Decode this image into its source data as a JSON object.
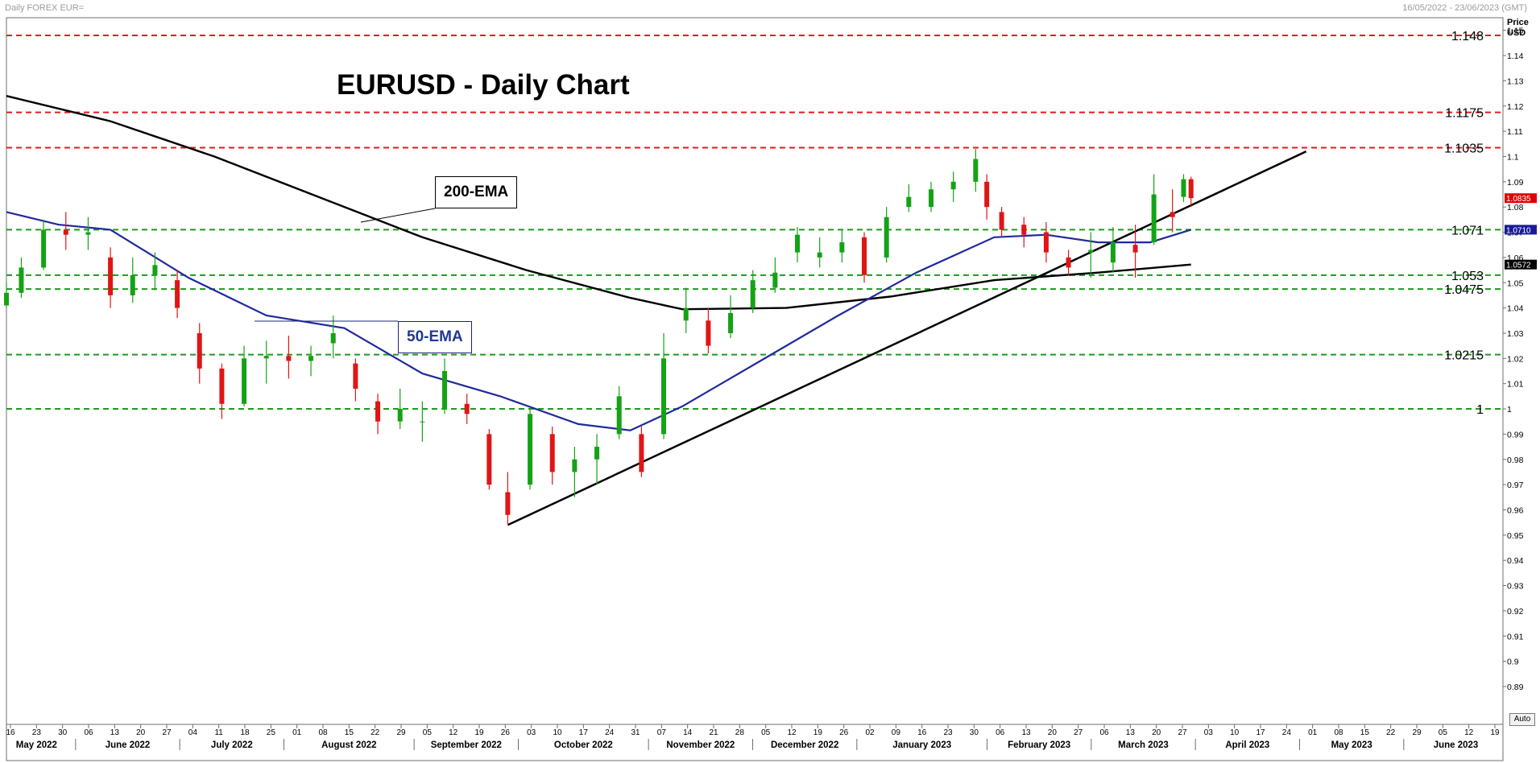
{
  "header": {
    "left": "Daily FOREX EUR=",
    "right": "16/05/2022 - 23/06/2023 (GMT)"
  },
  "price_axis_label": [
    "Price",
    "USD"
  ],
  "auto_label": "Auto",
  "chart_data": {
    "type": "candlestick",
    "title": "EURUSD - Daily Chart",
    "ylim": [
      0.875,
      1.155
    ],
    "y_ticks": [
      "0.89",
      "0.9",
      "0.91",
      "0.92",
      "0.93",
      "0.94",
      "0.95",
      "0.96",
      "0.97",
      "0.98",
      "0.99",
      "1",
      "1.01",
      "1.02",
      "1.03",
      "1.04",
      "1.05",
      "1.06",
      "1.07",
      "1.08",
      "1.09",
      "1.1",
      "1.11",
      "1.12",
      "1.13",
      "1.14",
      "1.15"
    ],
    "x_start": "2022-05-16",
    "x_end": "2023-06-23",
    "x_day_ticks": [
      "16",
      "23",
      "30",
      "06",
      "13",
      "20",
      "27",
      "04",
      "11",
      "18",
      "25",
      "01",
      "08",
      "15",
      "22",
      "29",
      "05",
      "12",
      "19",
      "26",
      "03",
      "10",
      "17",
      "24",
      "31",
      "07",
      "14",
      "21",
      "28",
      "05",
      "12",
      "19",
      "26",
      "02",
      "09",
      "16",
      "23",
      "30",
      "06",
      "13",
      "20",
      "27",
      "06",
      "13",
      "20",
      "27",
      "03",
      "10",
      "17",
      "24",
      "01",
      "08",
      "15",
      "22",
      "29",
      "05",
      "12",
      "19"
    ],
    "x_month_labels": [
      "May 2022",
      "June 2022",
      "July 2022",
      "August 2022",
      "September 2022",
      "October 2022",
      "November 2022",
      "December 2022",
      "January 2023",
      "February 2023",
      "March 2023",
      "April 2023",
      "May 2023",
      "June 2023"
    ],
    "resistance_levels": [
      {
        "value": 1.148,
        "label": "1.148"
      },
      {
        "value": 1.1175,
        "label": "1.1175"
      },
      {
        "value": 1.1035,
        "label": "1.1035"
      }
    ],
    "support_levels": [
      {
        "value": 1.071,
        "label": "1.071"
      },
      {
        "value": 1.053,
        "label": "1.053"
      },
      {
        "value": 1.0475,
        "label": "1.0475"
      },
      {
        "value": 1.0215,
        "label": "1.0215"
      },
      {
        "value": 1,
        "label": "1"
      }
    ],
    "price_tags": [
      {
        "value": 1.0835,
        "label": "1.0835",
        "color": "#e00000"
      },
      {
        "value": 1.071,
        "label": "1.0710",
        "color": "#1a1a9c"
      },
      {
        "value": 1.0572,
        "label": "1.0572",
        "color": "#000000"
      }
    ],
    "ema_labels": {
      "ema200": "200-EMA",
      "ema50": "50-EMA"
    },
    "ema200": [
      {
        "date": "2022-05-16",
        "value": 1.124
      },
      {
        "date": "2022-06-13",
        "value": 1.114
      },
      {
        "date": "2022-07-11",
        "value": 1.1
      },
      {
        "date": "2022-08-08",
        "value": 1.084
      },
      {
        "date": "2022-09-05",
        "value": 1.068
      },
      {
        "date": "2022-10-03",
        "value": 1.055
      },
      {
        "date": "2022-10-31",
        "value": 1.044
      },
      {
        "date": "2022-11-14",
        "value": 1.0395
      },
      {
        "date": "2022-12-12",
        "value": 1.04
      },
      {
        "date": "2023-01-09",
        "value": 1.0445
      },
      {
        "date": "2023-02-06",
        "value": 1.051
      },
      {
        "date": "2023-03-06",
        "value": 1.054
      },
      {
        "date": "2023-03-31",
        "value": 1.0572
      }
    ],
    "ema50": [
      {
        "date": "2022-05-16",
        "value": 1.078
      },
      {
        "date": "2022-05-30",
        "value": 1.073
      },
      {
        "date": "2022-06-13",
        "value": 1.071
      },
      {
        "date": "2022-07-04",
        "value": 1.052
      },
      {
        "date": "2022-07-25",
        "value": 1.037
      },
      {
        "date": "2022-08-15",
        "value": 1.032
      },
      {
        "date": "2022-09-05",
        "value": 1.014
      },
      {
        "date": "2022-09-26",
        "value": 1.005
      },
      {
        "date": "2022-10-17",
        "value": 0.994
      },
      {
        "date": "2022-10-31",
        "value": 0.9915
      },
      {
        "date": "2022-11-14",
        "value": 1.001
      },
      {
        "date": "2022-12-05",
        "value": 1.019
      },
      {
        "date": "2022-12-26",
        "value": 1.037
      },
      {
        "date": "2023-01-16",
        "value": 1.054
      },
      {
        "date": "2023-02-06",
        "value": 1.068
      },
      {
        "date": "2023-02-20",
        "value": 1.069
      },
      {
        "date": "2023-03-06",
        "value": 1.066
      },
      {
        "date": "2023-03-20",
        "value": 1.066
      },
      {
        "date": "2023-03-31",
        "value": 1.071
      }
    ],
    "trendline": [
      {
        "date": "2022-09-28",
        "value": 0.954
      },
      {
        "date": "2023-05-01",
        "value": 1.102
      }
    ],
    "candles": [
      {
        "date": "2022-05-16",
        "open": 1.041,
        "high": 1.05,
        "low": 1.04,
        "close": 1.046
      },
      {
        "date": "2022-05-20",
        "open": 1.046,
        "high": 1.06,
        "low": 1.044,
        "close": 1.056
      },
      {
        "date": "2022-05-26",
        "open": 1.056,
        "high": 1.075,
        "low": 1.055,
        "close": 1.071
      },
      {
        "date": "2022-06-01",
        "open": 1.071,
        "high": 1.078,
        "low": 1.063,
        "close": 1.069
      },
      {
        "date": "2022-06-07",
        "open": 1.069,
        "high": 1.076,
        "low": 1.063,
        "close": 1.07
      },
      {
        "date": "2022-06-13",
        "open": 1.06,
        "high": 1.064,
        "low": 1.04,
        "close": 1.045
      },
      {
        "date": "2022-06-19",
        "open": 1.045,
        "high": 1.06,
        "low": 1.042,
        "close": 1.053
      },
      {
        "date": "2022-06-25",
        "open": 1.053,
        "high": 1.062,
        "low": 1.047,
        "close": 1.057
      },
      {
        "date": "2022-07-01",
        "open": 1.051,
        "high": 1.055,
        "low": 1.036,
        "close": 1.04
      },
      {
        "date": "2022-07-07",
        "open": 1.03,
        "high": 1.034,
        "low": 1.01,
        "close": 1.016
      },
      {
        "date": "2022-07-13",
        "open": 1.016,
        "high": 1.018,
        "low": 0.996,
        "close": 1.002
      },
      {
        "date": "2022-07-19",
        "open": 1.002,
        "high": 1.025,
        "low": 1.001,
        "close": 1.02
      },
      {
        "date": "2022-07-25",
        "open": 1.02,
        "high": 1.027,
        "low": 1.01,
        "close": 1.021
      },
      {
        "date": "2022-07-31",
        "open": 1.021,
        "high": 1.029,
        "low": 1.012,
        "close": 1.019
      },
      {
        "date": "2022-08-06",
        "open": 1.019,
        "high": 1.025,
        "low": 1.013,
        "close": 1.021
      },
      {
        "date": "2022-08-12",
        "open": 1.026,
        "high": 1.037,
        "low": 1.02,
        "close": 1.03
      },
      {
        "date": "2022-08-18",
        "open": 1.018,
        "high": 1.02,
        "low": 1.003,
        "close": 1.008
      },
      {
        "date": "2022-08-24",
        "open": 1.003,
        "high": 1.006,
        "low": 0.99,
        "close": 0.995
      },
      {
        "date": "2022-08-30",
        "open": 0.995,
        "high": 1.008,
        "low": 0.992,
        "close": 1.0
      },
      {
        "date": "2022-09-05",
        "open": 0.995,
        "high": 1.003,
        "low": 0.987,
        "close": 0.995
      },
      {
        "date": "2022-09-11",
        "open": 1.0,
        "high": 1.02,
        "low": 0.998,
        "close": 1.015
      },
      {
        "date": "2022-09-17",
        "open": 1.002,
        "high": 1.006,
        "low": 0.994,
        "close": 0.998
      },
      {
        "date": "2022-09-23",
        "open": 0.99,
        "high": 0.992,
        "low": 0.968,
        "close": 0.97
      },
      {
        "date": "2022-09-28",
        "open": 0.967,
        "high": 0.975,
        "low": 0.954,
        "close": 0.958
      },
      {
        "date": "2022-10-04",
        "open": 0.97,
        "high": 1.0,
        "low": 0.968,
        "close": 0.998
      },
      {
        "date": "2022-10-10",
        "open": 0.99,
        "high": 0.993,
        "low": 0.97,
        "close": 0.975
      },
      {
        "date": "2022-10-16",
        "open": 0.975,
        "high": 0.985,
        "low": 0.965,
        "close": 0.98
      },
      {
        "date": "2022-10-22",
        "open": 0.98,
        "high": 0.99,
        "low": 0.97,
        "close": 0.985
      },
      {
        "date": "2022-10-28",
        "open": 0.99,
        "high": 1.009,
        "low": 0.988,
        "close": 1.005
      },
      {
        "date": "2022-11-03",
        "open": 0.99,
        "high": 0.993,
        "low": 0.973,
        "close": 0.975
      },
      {
        "date": "2022-11-09",
        "open": 0.99,
        "high": 1.03,
        "low": 0.988,
        "close": 1.02
      },
      {
        "date": "2022-11-15",
        "open": 1.035,
        "high": 1.048,
        "low": 1.03,
        "close": 1.04
      },
      {
        "date": "2022-11-21",
        "open": 1.035,
        "high": 1.04,
        "low": 1.022,
        "close": 1.025
      },
      {
        "date": "2022-11-27",
        "open": 1.03,
        "high": 1.045,
        "low": 1.028,
        "close": 1.038
      },
      {
        "date": "2022-12-03",
        "open": 1.04,
        "high": 1.055,
        "low": 1.038,
        "close": 1.051
      },
      {
        "date": "2022-12-09",
        "open": 1.048,
        "high": 1.06,
        "low": 1.046,
        "close": 1.054
      },
      {
        "date": "2022-12-15",
        "open": 1.062,
        "high": 1.072,
        "low": 1.058,
        "close": 1.069
      },
      {
        "date": "2022-12-21",
        "open": 1.06,
        "high": 1.068,
        "low": 1.056,
        "close": 1.062
      },
      {
        "date": "2022-12-27",
        "open": 1.062,
        "high": 1.071,
        "low": 1.058,
        "close": 1.066
      },
      {
        "date": "2023-01-02",
        "open": 1.068,
        "high": 1.07,
        "low": 1.05,
        "close": 1.053
      },
      {
        "date": "2023-01-08",
        "open": 1.06,
        "high": 1.08,
        "low": 1.058,
        "close": 1.076
      },
      {
        "date": "2023-01-14",
        "open": 1.08,
        "high": 1.089,
        "low": 1.078,
        "close": 1.084
      },
      {
        "date": "2023-01-20",
        "open": 1.08,
        "high": 1.09,
        "low": 1.078,
        "close": 1.087
      },
      {
        "date": "2023-01-26",
        "open": 1.087,
        "high": 1.094,
        "low": 1.082,
        "close": 1.09
      },
      {
        "date": "2023-02-01",
        "open": 1.09,
        "high": 1.103,
        "low": 1.086,
        "close": 1.099
      },
      {
        "date": "2023-02-04",
        "open": 1.09,
        "high": 1.093,
        "low": 1.075,
        "close": 1.08
      },
      {
        "date": "2023-02-08",
        "open": 1.078,
        "high": 1.08,
        "low": 1.068,
        "close": 1.071
      },
      {
        "date": "2023-02-14",
        "open": 1.073,
        "high": 1.076,
        "low": 1.064,
        "close": 1.069
      },
      {
        "date": "2023-02-20",
        "open": 1.07,
        "high": 1.074,
        "low": 1.058,
        "close": 1.062
      },
      {
        "date": "2023-02-26",
        "open": 1.06,
        "high": 1.063,
        "low": 1.053,
        "close": 1.056
      },
      {
        "date": "2023-03-04",
        "open": 1.062,
        "high": 1.07,
        "low": 1.052,
        "close": 1.063
      },
      {
        "date": "2023-03-10",
        "open": 1.058,
        "high": 1.072,
        "low": 1.054,
        "close": 1.066
      },
      {
        "date": "2023-03-16",
        "open": 1.065,
        "high": 1.073,
        "low": 1.052,
        "close": 1.062
      },
      {
        "date": "2023-03-21",
        "open": 1.066,
        "high": 1.093,
        "low": 1.065,
        "close": 1.085
      },
      {
        "date": "2023-03-26",
        "open": 1.078,
        "high": 1.087,
        "low": 1.07,
        "close": 1.076
      },
      {
        "date": "2023-03-29",
        "open": 1.084,
        "high": 1.093,
        "low": 1.082,
        "close": 1.091
      },
      {
        "date": "2023-03-31",
        "open": 1.091,
        "high": 1.092,
        "low": 1.08,
        "close": 1.0835
      }
    ]
  }
}
